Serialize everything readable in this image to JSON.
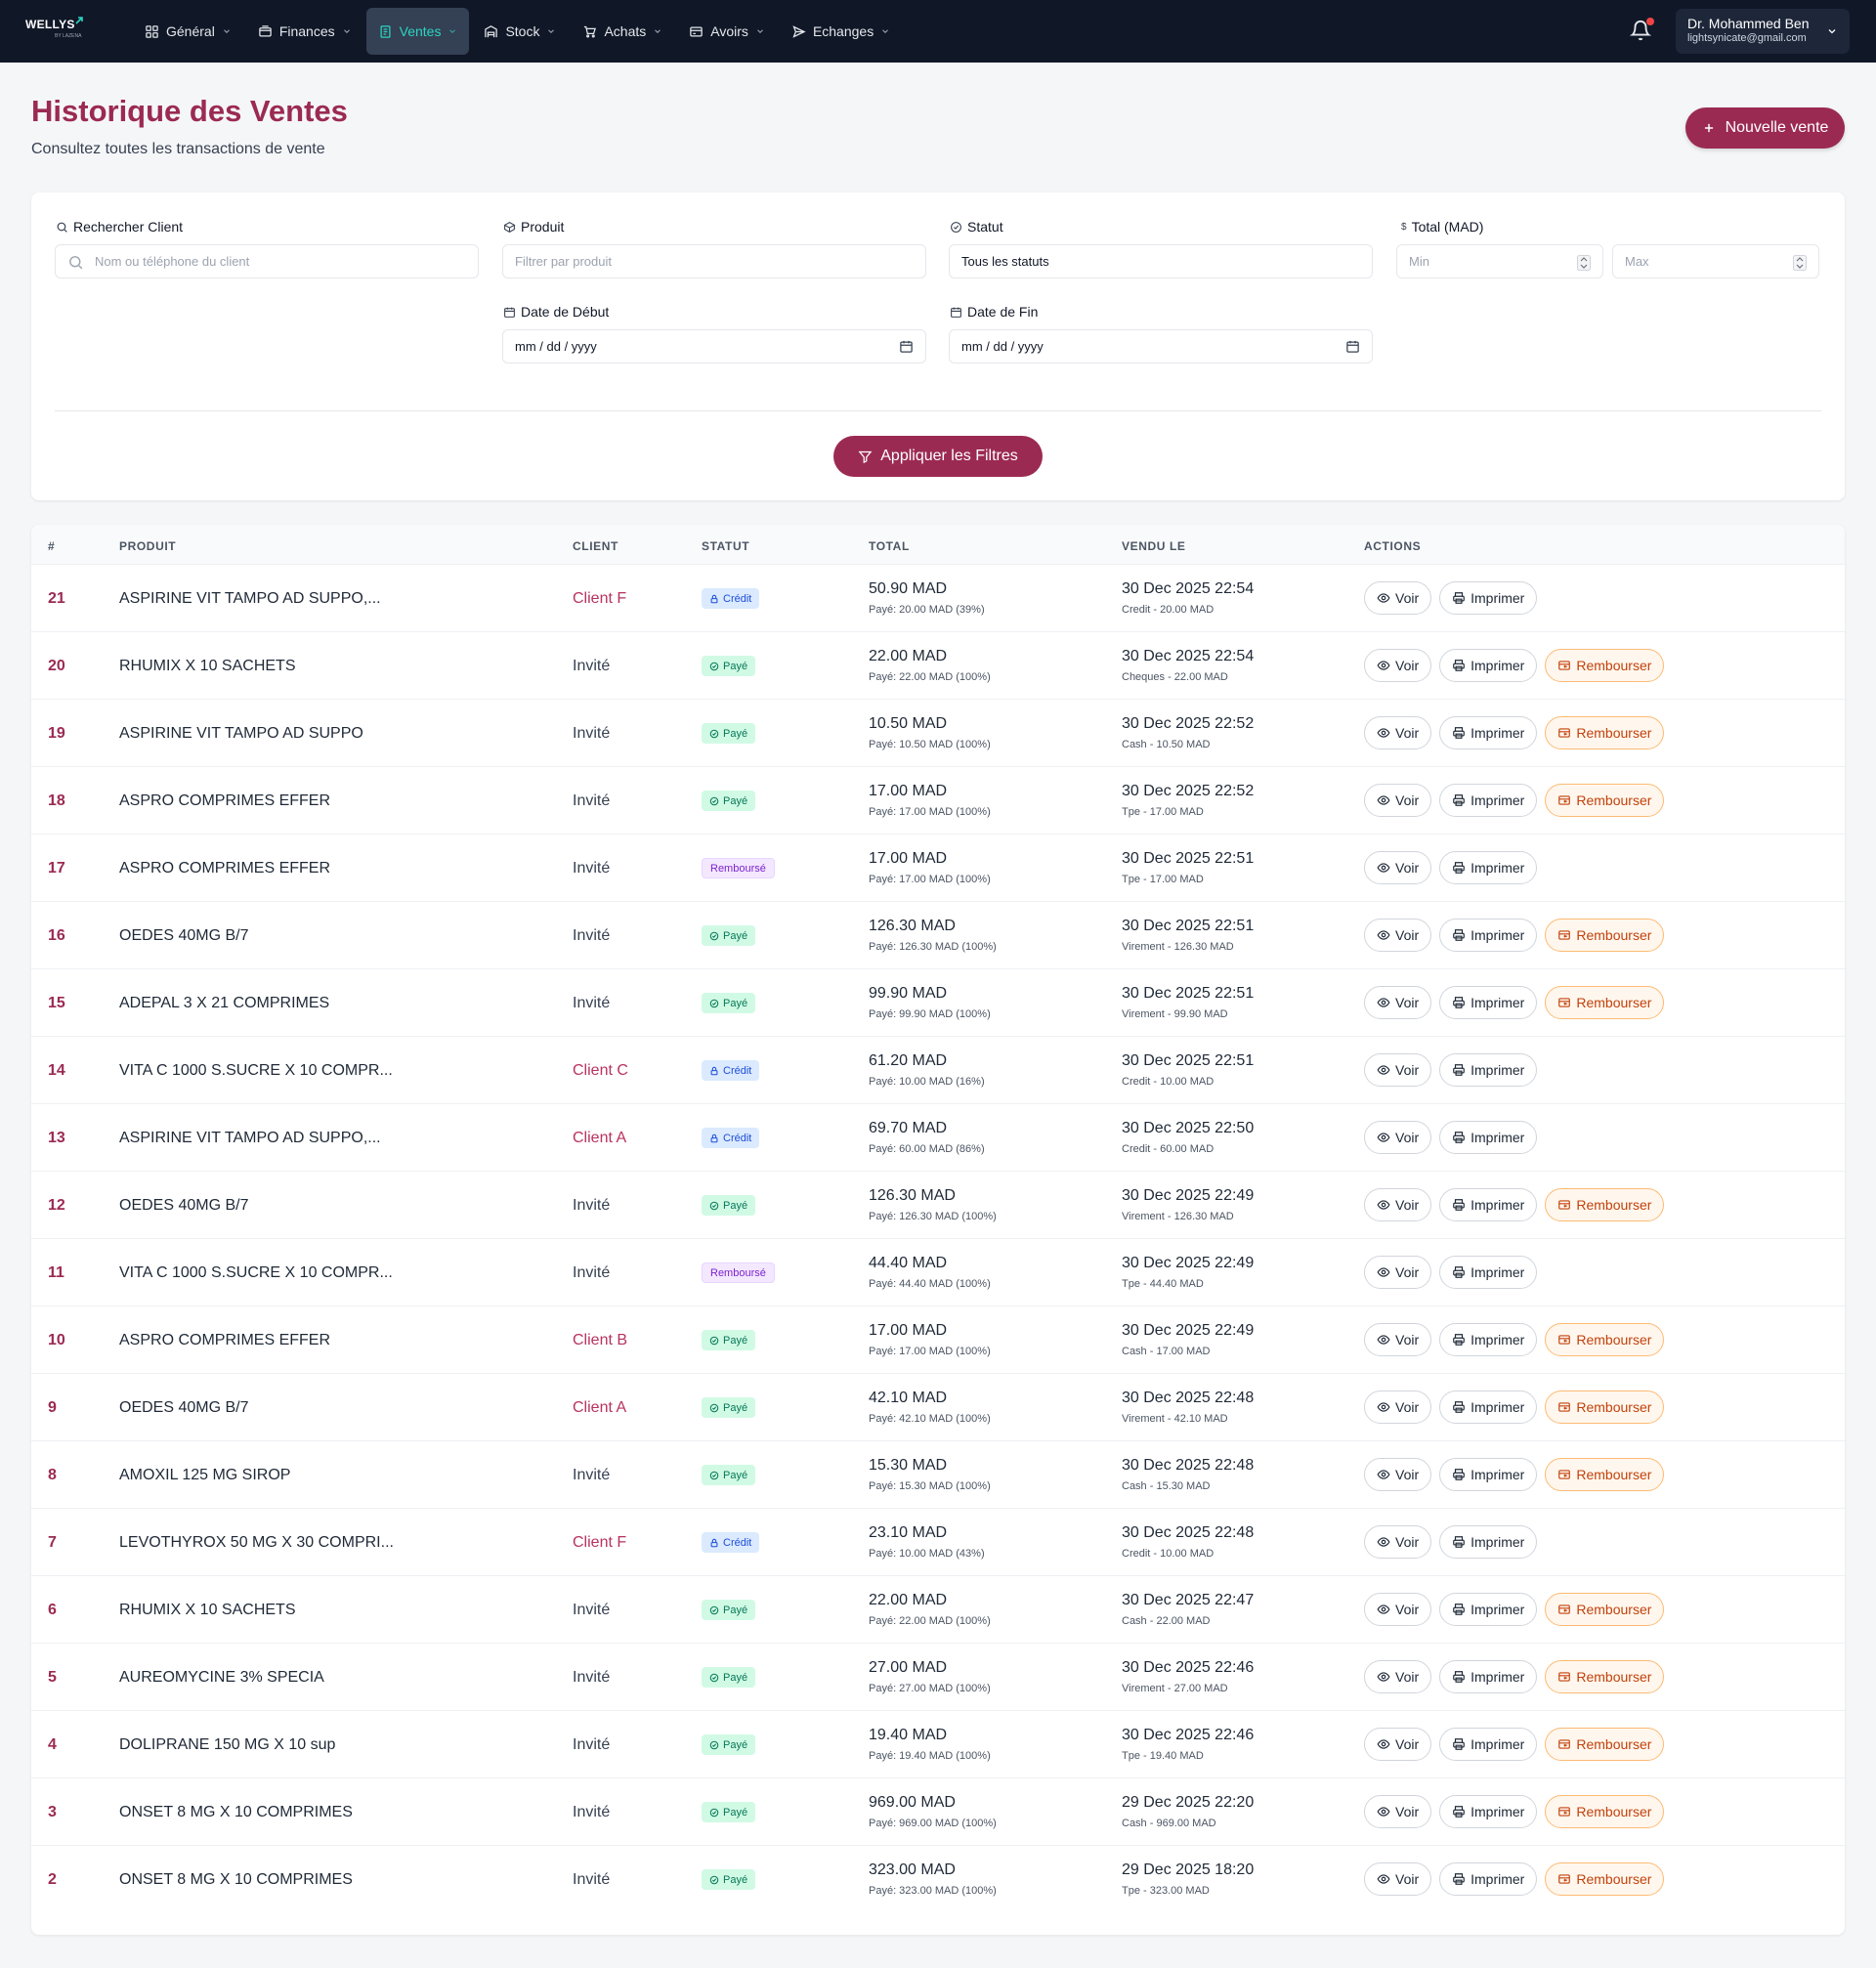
{
  "nav": {
    "logo_text": "WELLYS",
    "logo_sub": "BY LAZENA",
    "menu": [
      {
        "label": "Général",
        "icon": "grid-icon"
      },
      {
        "label": "Finances",
        "icon": "wallet-icon"
      },
      {
        "label": "Ventes",
        "icon": "receipt-icon",
        "active": true
      },
      {
        "label": "Stock",
        "icon": "warehouse-icon"
      },
      {
        "label": "Achats",
        "icon": "cart-icon"
      },
      {
        "label": "Avoirs",
        "icon": "credit-card-icon"
      },
      {
        "label": "Echanges",
        "icon": "send-icon"
      }
    ],
    "user_name": "Dr. Mohammed Ben",
    "user_email": "lightsynicate@gmail.com"
  },
  "header": {
    "title": "Historique des Ventes",
    "subtitle": "Consultez toutes les transactions de vente",
    "new_button": "Nouvelle vente"
  },
  "filters": {
    "client_label": "Rechercher Client",
    "client_placeholder": "Nom ou téléphone du client",
    "product_label": "Produit",
    "product_placeholder": "Filtrer par produit",
    "status_label": "Statut",
    "status_value": "Tous les statuts",
    "total_label": "Total (MAD)",
    "min_placeholder": "Min",
    "max_placeholder": "Max",
    "start_label": "Date de Début",
    "start_placeholder": "mm / dd / yyyy",
    "end_label": "Date de Fin",
    "end_placeholder": "mm / dd / yyyy",
    "apply_button": "Appliquer les Filtres"
  },
  "table": {
    "headers": [
      "#",
      "PRODUIT",
      "CLIENT",
      "STATUT",
      "TOTAL",
      "VENDU LE",
      "ACTIONS"
    ],
    "action_view": "Voir",
    "action_print": "Imprimer",
    "action_refund": "Rembourser",
    "rows": [
      {
        "num": "21",
        "product": "ASPIRINE VIT TAMPO AD SUPPO,...",
        "client": "Client F",
        "status": "Crédit",
        "status_type": "credit",
        "total": "50.90 MAD",
        "paid": "Payé: 20.00 MAD (39%)",
        "date": "30 Dec 2025 22:54",
        "method": "Credit - 20.00 MAD"
      },
      {
        "num": "20",
        "product": "RHUMIX X 10 SACHETS",
        "client": "Invité",
        "status": "Payé",
        "status_type": "paye",
        "total": "22.00 MAD",
        "paid": "Payé: 22.00 MAD (100%)",
        "date": "30 Dec 2025 22:54",
        "method": "Cheques - 22.00 MAD"
      },
      {
        "num": "19",
        "product": "ASPIRINE VIT TAMPO AD SUPPO",
        "client": "Invité",
        "status": "Payé",
        "status_type": "paye",
        "total": "10.50 MAD",
        "paid": "Payé: 10.50 MAD (100%)",
        "date": "30 Dec 2025 22:52",
        "method": "Cash - 10.50 MAD"
      },
      {
        "num": "18",
        "product": "ASPRO COMPRIMES EFFER",
        "client": "Invité",
        "status": "Payé",
        "status_type": "paye",
        "total": "17.00 MAD",
        "paid": "Payé: 17.00 MAD (100%)",
        "date": "30 Dec 2025 22:52",
        "method": "Tpe - 17.00 MAD"
      },
      {
        "num": "17",
        "product": "ASPRO COMPRIMES EFFER",
        "client": "Invité",
        "status": "Remboursé",
        "status_type": "rembourse",
        "total": "17.00 MAD",
        "paid": "Payé: 17.00 MAD (100%)",
        "date": "30 Dec 2025 22:51",
        "method": "Tpe - 17.00 MAD"
      },
      {
        "num": "16",
        "product": "OEDES 40MG B/7",
        "client": "Invité",
        "status": "Payé",
        "status_type": "paye",
        "total": "126.30 MAD",
        "paid": "Payé: 126.30 MAD (100%)",
        "date": "30 Dec 2025 22:51",
        "method": "Virement - 126.30 MAD"
      },
      {
        "num": "15",
        "product": "ADEPAL 3 X 21 COMPRIMES",
        "client": "Invité",
        "status": "Payé",
        "status_type": "paye",
        "total": "99.90 MAD",
        "paid": "Payé: 99.90 MAD (100%)",
        "date": "30 Dec 2025 22:51",
        "method": "Virement - 99.90 MAD"
      },
      {
        "num": "14",
        "product": "VITA C 1000 S.SUCRE X 10 COMPR...",
        "client": "Client C",
        "status": "Crédit",
        "status_type": "credit",
        "total": "61.20 MAD",
        "paid": "Payé: 10.00 MAD (16%)",
        "date": "30 Dec 2025 22:51",
        "method": "Credit - 10.00 MAD"
      },
      {
        "num": "13",
        "product": "ASPIRINE VIT TAMPO AD SUPPO,...",
        "client": "Client A",
        "status": "Crédit",
        "status_type": "credit",
        "total": "69.70 MAD",
        "paid": "Payé: 60.00 MAD (86%)",
        "date": "30 Dec 2025 22:50",
        "method": "Credit - 60.00 MAD"
      },
      {
        "num": "12",
        "product": "OEDES 40MG B/7",
        "client": "Invité",
        "status": "Payé",
        "status_type": "paye",
        "total": "126.30 MAD",
        "paid": "Payé: 126.30 MAD (100%)",
        "date": "30 Dec 2025 22:49",
        "method": "Virement - 126.30 MAD"
      },
      {
        "num": "11",
        "product": "VITA C 1000 S.SUCRE X 10 COMPR...",
        "client": "Invité",
        "status": "Remboursé",
        "status_type": "rembourse",
        "total": "44.40 MAD",
        "paid": "Payé: 44.40 MAD (100%)",
        "date": "30 Dec 2025 22:49",
        "method": "Tpe - 44.40 MAD"
      },
      {
        "num": "10",
        "product": "ASPRO COMPRIMES EFFER",
        "client": "Client B",
        "status": "Payé",
        "status_type": "paye",
        "total": "17.00 MAD",
        "paid": "Payé: 17.00 MAD (100%)",
        "date": "30 Dec 2025 22:49",
        "method": "Cash - 17.00 MAD"
      },
      {
        "num": "9",
        "product": "OEDES 40MG B/7",
        "client": "Client A",
        "status": "Payé",
        "status_type": "paye",
        "total": "42.10 MAD",
        "paid": "Payé: 42.10 MAD (100%)",
        "date": "30 Dec 2025 22:48",
        "method": "Virement - 42.10 MAD"
      },
      {
        "num": "8",
        "product": "AMOXIL 125 MG SIROP",
        "client": "Invité",
        "status": "Payé",
        "status_type": "paye",
        "total": "15.30 MAD",
        "paid": "Payé: 15.30 MAD (100%)",
        "date": "30 Dec 2025 22:48",
        "method": "Cash - 15.30 MAD"
      },
      {
        "num": "7",
        "product": "LEVOTHYROX 50 MG X 30 COMPRI...",
        "client": "Client F",
        "status": "Crédit",
        "status_type": "credit",
        "total": "23.10 MAD",
        "paid": "Payé: 10.00 MAD (43%)",
        "date": "30 Dec 2025 22:48",
        "method": "Credit - 10.00 MAD"
      },
      {
        "num": "6",
        "product": "RHUMIX X 10 SACHETS",
        "client": "Invité",
        "status": "Payé",
        "status_type": "paye",
        "total": "22.00 MAD",
        "paid": "Payé: 22.00 MAD (100%)",
        "date": "30 Dec 2025 22:47",
        "method": "Cash - 22.00 MAD"
      },
      {
        "num": "5",
        "product": "AUREOMYCINE 3% SPECIA",
        "client": "Invité",
        "status": "Payé",
        "status_type": "paye",
        "total": "27.00 MAD",
        "paid": "Payé: 27.00 MAD (100%)",
        "date": "30 Dec 2025 22:46",
        "method": "Virement - 27.00 MAD"
      },
      {
        "num": "4",
        "product": "DOLIPRANE 150 MG X 10 sup",
        "client": "Invité",
        "status": "Payé",
        "status_type": "paye",
        "total": "19.40 MAD",
        "paid": "Payé: 19.40 MAD (100%)",
        "date": "30 Dec 2025 22:46",
        "method": "Tpe - 19.40 MAD"
      },
      {
        "num": "3",
        "product": "ONSET 8 MG X 10 COMPRIMES",
        "client": "Invité",
        "status": "Payé",
        "status_type": "paye",
        "total": "969.00 MAD",
        "paid": "Payé: 969.00 MAD (100%)",
        "date": "29 Dec 2025 22:20",
        "method": "Cash - 969.00 MAD"
      },
      {
        "num": "2",
        "product": "ONSET 8 MG X 10 COMPRIMES",
        "client": "Invité",
        "status": "Payé",
        "status_type": "paye",
        "total": "323.00 MAD",
        "paid": "Payé: 323.00 MAD (100%)",
        "date": "29 Dec 2025 18:20",
        "method": "Tpe - 323.00 MAD"
      }
    ]
  },
  "colors": {
    "brand": "#9b2a52",
    "nav_bg": "#101828",
    "active_accent": "#2dd4bf"
  }
}
